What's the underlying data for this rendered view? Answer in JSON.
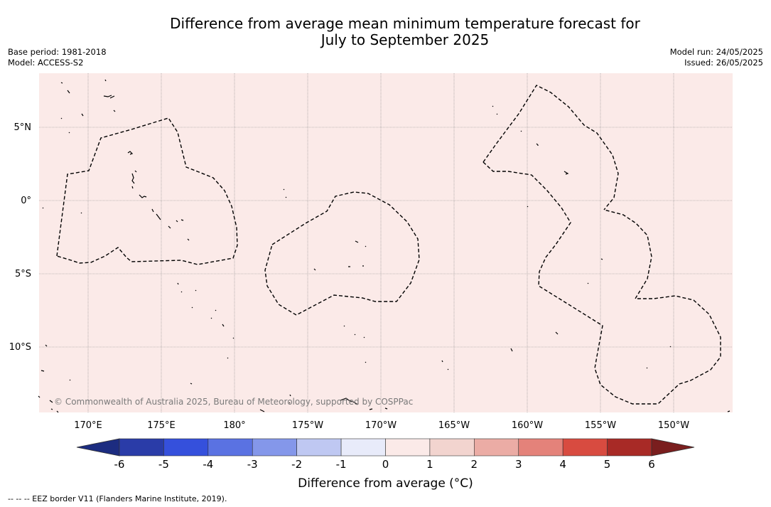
{
  "title_line1": "Difference from average mean minimum temperature forecast for",
  "title_line2": "July to September 2025",
  "base_period": "Base period: 1981-2018",
  "model": "Model: ACCESS-S2",
  "model_run": "Model run: 24/05/2025",
  "issued": "Issued: 26/05/2025",
  "copyright": "© Commonwealth of Australia 2025, Bureau of Meteorology, supported by COSPPac",
  "colorbar_label": "Difference from average (°C)",
  "footnote": "-- -- -- EEZ border V11 (Flanders Marine Institute, 2019).",
  "map": {
    "background_color": "#fbeae8",
    "longitude_ticks": [
      {
        "lon": 170,
        "label": "170°E"
      },
      {
        "lon": 175,
        "label": "175°E"
      },
      {
        "lon": 180,
        "label": "180°"
      },
      {
        "lon": 185,
        "label": "175°W"
      },
      {
        "lon": 190,
        "label": "170°W"
      },
      {
        "lon": 195,
        "label": "165°W"
      },
      {
        "lon": 200,
        "label": "160°W"
      },
      {
        "lon": 205,
        "label": "155°W"
      },
      {
        "lon": 210,
        "label": "150°W"
      }
    ],
    "latitude_ticks": [
      {
        "lat": 5,
        "label": "5°N"
      },
      {
        "lat": 0,
        "label": "0°"
      },
      {
        "lat": -5,
        "label": "5°S"
      },
      {
        "lat": -10,
        "label": "10°S"
      }
    ]
  },
  "colorbar": {
    "ticks": [
      "-6",
      "-5",
      "-4",
      "-3",
      "-2",
      "-1",
      "0",
      "1",
      "2",
      "3",
      "4",
      "5",
      "6"
    ],
    "colors": [
      "#2a3ca8",
      "#3550dc",
      "#5a72e2",
      "#8497ea",
      "#bfc8f2",
      "#e8ebfa",
      "#fbeae8",
      "#f2d4cf",
      "#ebaca5",
      "#e4827a",
      "#d84b40",
      "#a82a26"
    ],
    "under_color": "#1c2c80",
    "over_color": "#7a1e1e"
  }
}
